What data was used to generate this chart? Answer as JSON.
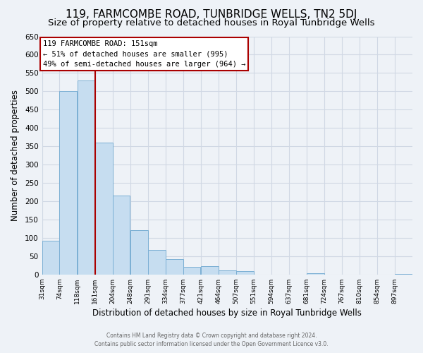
{
  "title": "119, FARMCOMBE ROAD, TUNBRIDGE WELLS, TN2 5DJ",
  "subtitle": "Size of property relative to detached houses in Royal Tunbridge Wells",
  "xlabel": "Distribution of detached houses by size in Royal Tunbridge Wells",
  "ylabel": "Number of detached properties",
  "footer_line1": "Contains HM Land Registry data © Crown copyright and database right 2024.",
  "footer_line2": "Contains public sector information licensed under the Open Government Licence v3.0.",
  "bar_labels": [
    "31sqm",
    "74sqm",
    "118sqm",
    "161sqm",
    "204sqm",
    "248sqm",
    "291sqm",
    "334sqm",
    "377sqm",
    "421sqm",
    "464sqm",
    "507sqm",
    "551sqm",
    "594sqm",
    "637sqm",
    "681sqm",
    "724sqm",
    "767sqm",
    "810sqm",
    "854sqm",
    "897sqm"
  ],
  "bar_values": [
    93,
    500,
    530,
    360,
    215,
    122,
    67,
    42,
    20,
    22,
    12,
    10,
    0,
    0,
    0,
    3,
    0,
    0,
    0,
    0,
    2
  ],
  "bar_color": "#c6ddf0",
  "bar_edge_color": "#7bafd4",
  "annotation_title": "119 FARMCOMBE ROAD: 151sqm",
  "annotation_line1": "← 51% of detached houses are smaller (995)",
  "annotation_line2": "49% of semi-detached houses are larger (964) →",
  "vline_color": "#aa0000",
  "ylim": [
    0,
    650
  ],
  "yticks": [
    0,
    50,
    100,
    150,
    200,
    250,
    300,
    350,
    400,
    450,
    500,
    550,
    600,
    650
  ],
  "bg_color": "#eef2f7",
  "plot_bg_color": "#eef2f7",
  "title_fontsize": 11,
  "subtitle_fontsize": 9.5,
  "annotation_box_color": "#ffffff",
  "annotation_box_edge": "#aa0000",
  "grid_color": "#d0d8e4",
  "footer_color": "#666666"
}
